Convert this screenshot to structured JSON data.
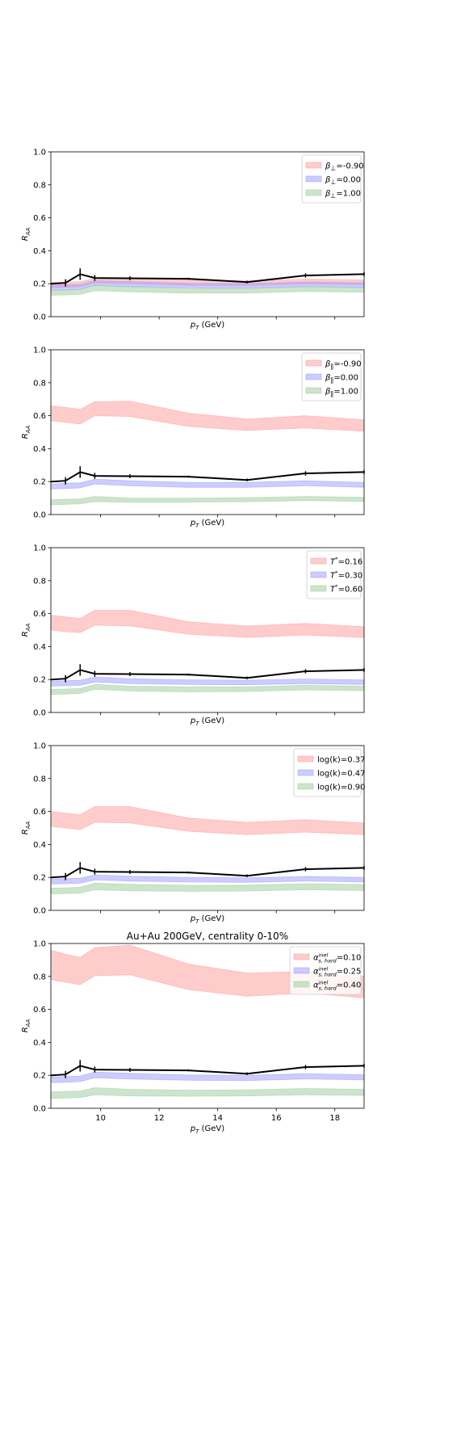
{
  "chart_data": [
    {
      "type": "area",
      "title": "",
      "xlabel": "p_T (GeV)",
      "ylabel": "R_AA",
      "xlim": [
        8.3,
        19.0
      ],
      "ylim": [
        0,
        1.0
      ],
      "yticks": [
        "0.0",
        "0.2",
        "0.4",
        "0.6",
        "0.8",
        "1.0"
      ],
      "xticks": [
        10,
        12,
        14,
        16,
        18
      ],
      "show_xtick_labels": false,
      "legend_position": "top-right",
      "x": [
        8.3,
        8.8,
        9.3,
        9.8,
        11.0,
        13.0,
        15.0,
        17.0,
        19.0
      ],
      "bands": [
        {
          "legend_sym": "β⊥",
          "legend_val": "=-0.90",
          "color": "#ff9999",
          "low": [
            0.175,
            0.178,
            0.182,
            0.205,
            0.2,
            0.19,
            0.188,
            0.198,
            0.193
          ],
          "high": [
            0.208,
            0.21,
            0.212,
            0.233,
            0.232,
            0.223,
            0.217,
            0.228,
            0.223
          ]
        },
        {
          "legend_sym": "β⊥",
          "legend_val": "=0.00",
          "color": "#9999ff",
          "low": [
            0.16,
            0.162,
            0.166,
            0.19,
            0.183,
            0.175,
            0.173,
            0.183,
            0.178
          ],
          "high": [
            0.192,
            0.193,
            0.196,
            0.218,
            0.213,
            0.203,
            0.201,
            0.211,
            0.206
          ]
        },
        {
          "legend_sym": "β⊥",
          "legend_val": "=1.00",
          "color": "#99cc99",
          "low": [
            0.13,
            0.132,
            0.136,
            0.158,
            0.15,
            0.143,
            0.143,
            0.153,
            0.148
          ],
          "high": [
            0.16,
            0.161,
            0.165,
            0.19,
            0.18,
            0.171,
            0.171,
            0.181,
            0.176
          ]
        }
      ],
      "line": {
        "y": [
          0.2,
          0.205,
          0.258,
          0.235,
          0.233,
          0.23,
          0.21,
          0.25,
          0.258
        ],
        "err": [
          0.0,
          0.022,
          0.035,
          0.018,
          0.012,
          0.006,
          0.008,
          0.013,
          0.012
        ]
      }
    },
    {
      "type": "area",
      "title": "",
      "xlabel": "p_T (GeV)",
      "ylabel": "R_AA",
      "xlim": [
        8.3,
        19.0
      ],
      "ylim": [
        0,
        1.0
      ],
      "yticks": [
        "0.0",
        "0.2",
        "0.4",
        "0.6",
        "0.8",
        "1.0"
      ],
      "xticks": [
        10,
        12,
        14,
        16,
        18
      ],
      "show_xtick_labels": false,
      "legend_position": "top-right",
      "x": [
        8.3,
        8.8,
        9.3,
        9.8,
        11.0,
        13.0,
        15.0,
        17.0,
        19.0
      ],
      "bands": [
        {
          "legend_sym": "β∥",
          "legend_val": "=-0.90",
          "color": "#ff9999",
          "low": [
            0.57,
            0.56,
            0.55,
            0.6,
            0.595,
            0.535,
            0.51,
            0.525,
            0.505
          ],
          "high": [
            0.66,
            0.65,
            0.638,
            0.685,
            0.688,
            0.615,
            0.58,
            0.6,
            0.575
          ]
        },
        {
          "legend_sym": "β∥",
          "legend_val": "=0.00",
          "color": "#9999ff",
          "low": [
            0.155,
            0.158,
            0.162,
            0.185,
            0.175,
            0.165,
            0.165,
            0.175,
            0.165
          ],
          "high": [
            0.185,
            0.19,
            0.192,
            0.215,
            0.205,
            0.195,
            0.195,
            0.205,
            0.195
          ]
        },
        {
          "legend_sym": "β∥",
          "legend_val": "=1.00",
          "color": "#99cc99",
          "low": [
            0.06,
            0.062,
            0.065,
            0.078,
            0.075,
            0.075,
            0.078,
            0.085,
            0.08
          ],
          "high": [
            0.09,
            0.092,
            0.095,
            0.11,
            0.1,
            0.1,
            0.102,
            0.11,
            0.105
          ]
        }
      ],
      "line": {
        "y": [
          0.2,
          0.205,
          0.258,
          0.235,
          0.233,
          0.23,
          0.21,
          0.25,
          0.258
        ],
        "err": [
          0.0,
          0.022,
          0.035,
          0.018,
          0.012,
          0.006,
          0.008,
          0.013,
          0.012
        ]
      }
    },
    {
      "type": "area",
      "title": "",
      "xlabel": "p_T (GeV)",
      "ylabel": "R_AA",
      "xlim": [
        8.3,
        19.0
      ],
      "ylim": [
        0,
        1.0
      ],
      "yticks": [
        "0.0",
        "0.2",
        "0.4",
        "0.6",
        "0.8",
        "1.0"
      ],
      "xticks": [
        10,
        12,
        14,
        16,
        18
      ],
      "show_xtick_labels": false,
      "legend_position": "top-right",
      "x": [
        8.3,
        8.8,
        9.3,
        9.8,
        11.0,
        13.0,
        15.0,
        17.0,
        19.0
      ],
      "bands": [
        {
          "legend_sym": "T*",
          "legend_val": "=0.16",
          "color": "#ff9999",
          "low": [
            0.5,
            0.49,
            0.485,
            0.53,
            0.525,
            0.475,
            0.455,
            0.47,
            0.455
          ],
          "high": [
            0.59,
            0.58,
            0.57,
            0.62,
            0.62,
            0.55,
            0.525,
            0.54,
            0.52
          ]
        },
        {
          "legend_sym": "T*",
          "legend_val": "=0.30",
          "color": "#9999ff",
          "low": [
            0.16,
            0.162,
            0.165,
            0.185,
            0.175,
            0.17,
            0.168,
            0.175,
            0.17
          ],
          "high": [
            0.19,
            0.192,
            0.195,
            0.215,
            0.205,
            0.198,
            0.196,
            0.203,
            0.198
          ]
        },
        {
          "legend_sym": "T*",
          "legend_val": "=0.60",
          "color": "#99cc99",
          "low": [
            0.11,
            0.112,
            0.115,
            0.14,
            0.13,
            0.125,
            0.127,
            0.137,
            0.132
          ],
          "high": [
            0.14,
            0.142,
            0.145,
            0.17,
            0.16,
            0.155,
            0.155,
            0.165,
            0.16
          ]
        }
      ],
      "line": {
        "y": [
          0.2,
          0.205,
          0.258,
          0.235,
          0.233,
          0.23,
          0.21,
          0.25,
          0.258
        ],
        "err": [
          0.0,
          0.022,
          0.035,
          0.018,
          0.012,
          0.006,
          0.008,
          0.013,
          0.012
        ]
      }
    },
    {
      "type": "area",
      "title": "",
      "xlabel": "p_T (GeV)",
      "ylabel": "R_AA",
      "xlim": [
        8.3,
        19.0
      ],
      "ylim": [
        0,
        1.0
      ],
      "yticks": [
        "0.0",
        "0.2",
        "0.4",
        "0.6",
        "0.8",
        "1.0"
      ],
      "xticks": [
        10,
        12,
        14,
        16,
        18
      ],
      "show_xtick_labels": false,
      "legend_position": "top-right",
      "x": [
        8.3,
        8.8,
        9.3,
        9.8,
        11.0,
        13.0,
        15.0,
        17.0,
        19.0
      ],
      "bands": [
        {
          "legend_sym": "log(k)",
          "legend_val": "=0.37",
          "color": "#ff9999",
          "low": [
            0.51,
            0.5,
            0.49,
            0.535,
            0.53,
            0.48,
            0.46,
            0.475,
            0.46
          ],
          "high": [
            0.6,
            0.59,
            0.58,
            0.63,
            0.63,
            0.56,
            0.535,
            0.55,
            0.53
          ]
        },
        {
          "legend_sym": "log(k)",
          "legend_val": "=0.47",
          "color": "#9999ff",
          "low": [
            0.16,
            0.162,
            0.165,
            0.185,
            0.178,
            0.172,
            0.17,
            0.178,
            0.172
          ],
          "high": [
            0.19,
            0.192,
            0.195,
            0.215,
            0.208,
            0.2,
            0.198,
            0.206,
            0.2
          ]
        },
        {
          "legend_sym": "log(k)",
          "legend_val": "=0.90",
          "color": "#99cc99",
          "low": [
            0.1,
            0.102,
            0.105,
            0.125,
            0.118,
            0.115,
            0.117,
            0.125,
            0.12
          ],
          "high": [
            0.135,
            0.137,
            0.14,
            0.165,
            0.158,
            0.152,
            0.153,
            0.162,
            0.157
          ]
        }
      ],
      "line": {
        "y": [
          0.2,
          0.205,
          0.258,
          0.235,
          0.233,
          0.23,
          0.21,
          0.25,
          0.258
        ],
        "err": [
          0.0,
          0.022,
          0.035,
          0.018,
          0.012,
          0.006,
          0.008,
          0.013,
          0.012
        ]
      }
    },
    {
      "type": "area",
      "title": "Au+Au 200GeV, centrality 0-10%",
      "xlabel": "p_T (GeV)",
      "ylabel": "R_AA",
      "xlim": [
        8.3,
        19.0
      ],
      "ylim": [
        0,
        1.0
      ],
      "yticks": [
        "0.0",
        "0.2",
        "0.4",
        "0.6",
        "0.8",
        "1.0"
      ],
      "xticks": [
        10,
        12,
        14,
        16,
        18
      ],
      "xtick_labels": [
        "10",
        "12",
        "14",
        "16",
        "18"
      ],
      "show_xtick_labels": true,
      "legend_position": "top-right",
      "x": [
        8.3,
        8.8,
        9.3,
        9.8,
        11.0,
        13.0,
        15.0,
        17.0,
        19.0
      ],
      "bands": [
        {
          "legend_sym": "α",
          "legend_sup": "inel",
          "legend_sub": "s, hard",
          "legend_val": "=0.10",
          "color": "#ff9999",
          "low": [
            0.78,
            0.765,
            0.75,
            0.805,
            0.81,
            0.72,
            0.68,
            0.7,
            0.67
          ],
          "high": [
            0.96,
            0.935,
            0.915,
            0.975,
            0.99,
            0.875,
            0.82,
            0.83,
            0.8
          ]
        },
        {
          "legend_sym": "α",
          "legend_sup": "inel",
          "legend_sub": "s, hard",
          "legend_val": "=0.25",
          "color": "#9999ff",
          "low": [
            0.155,
            0.158,
            0.162,
            0.185,
            0.178,
            0.17,
            0.168,
            0.178,
            0.172
          ],
          "high": [
            0.19,
            0.192,
            0.196,
            0.22,
            0.212,
            0.202,
            0.2,
            0.21,
            0.204
          ]
        },
        {
          "legend_sym": "α",
          "legend_sup": "inel",
          "legend_sub": "s, hard",
          "legend_val": "=0.40",
          "color": "#99cc99",
          "low": [
            0.06,
            0.062,
            0.065,
            0.082,
            0.075,
            0.073,
            0.075,
            0.082,
            0.078
          ],
          "high": [
            0.1,
            0.102,
            0.105,
            0.125,
            0.115,
            0.11,
            0.112,
            0.12,
            0.115
          ]
        }
      ],
      "line": {
        "y": [
          0.2,
          0.205,
          0.258,
          0.235,
          0.233,
          0.23,
          0.21,
          0.25,
          0.258
        ],
        "err": [
          0.0,
          0.022,
          0.035,
          0.018,
          0.012,
          0.006,
          0.008,
          0.013,
          0.012
        ]
      }
    }
  ]
}
